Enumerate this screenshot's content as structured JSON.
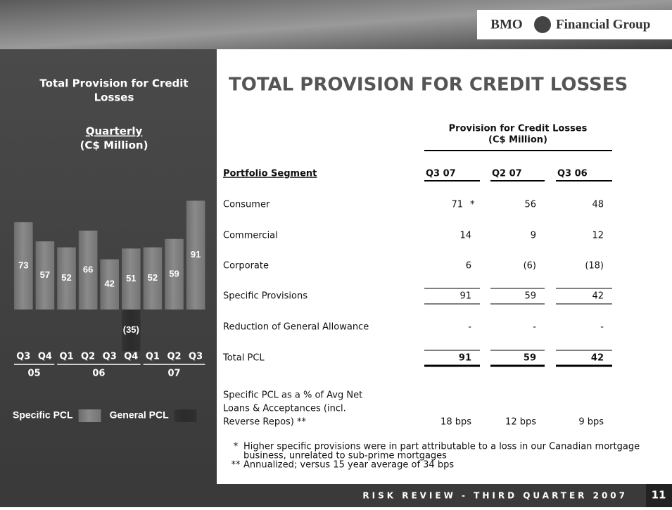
{
  "header": {
    "brand_left": "BMO",
    "brand_right": "Financial Group"
  },
  "sidebar": {
    "title": [
      "Total Provision for Credit",
      "Losses"
    ],
    "period": "Quarterly",
    "unit": "(C$ Million)"
  },
  "chart_data": {
    "type": "bar",
    "categories": [
      "Q3",
      "Q4",
      "Q1",
      "Q2",
      "Q3",
      "Q4",
      "Q1",
      "Q2",
      "Q3"
    ],
    "group_labels": [
      "05",
      "06",
      "07"
    ],
    "series": [
      {
        "name": "Specific PCL",
        "color": "#8a8a8a",
        "values": [
          73,
          57,
          52,
          66,
          42,
          51,
          52,
          59,
          91
        ]
      },
      {
        "name": "General PCL",
        "color": "#2b2b2b",
        "values": [
          null,
          null,
          null,
          null,
          null,
          -35,
          null,
          null,
          null
        ],
        "value_labels": [
          null,
          null,
          null,
          null,
          null,
          "(35)",
          null,
          null,
          null
        ]
      }
    ],
    "legend": "bottom-left"
  },
  "main": {
    "title": "TOTAL PROVISION FOR CREDIT LOSSES"
  },
  "table": {
    "super_header": [
      "Provision for Credit Losses",
      "(C$ Million)"
    ],
    "columns": [
      "Portfolio Segment",
      "Q3 07",
      "Q2 07",
      "Q3 06"
    ],
    "rows": [
      {
        "label": [
          "Consumer"
        ],
        "values": [
          "71",
          "56",
          "48"
        ],
        "note": "*"
      },
      {
        "label": [
          "Commercial"
        ],
        "values": [
          "14",
          "9",
          "12"
        ]
      },
      {
        "label": [
          "Corporate"
        ],
        "values": [
          "6",
          "(6)",
          "(18)"
        ]
      },
      {
        "label": [
          "Specific Provisions"
        ],
        "values": [
          "91",
          "59",
          "42"
        ]
      },
      {
        "label": [
          "Reduction of General Allowance"
        ],
        "values": [
          "-",
          "-",
          "-"
        ]
      },
      {
        "label": [
          "Total PCL"
        ],
        "values": [
          "91",
          "59",
          "42"
        ]
      },
      {
        "label": [
          "Specific PCL as a % of Avg Net",
          "Loans & Acceptances (incl.",
          "Reverse Repos) **"
        ],
        "values": [
          "18 bps",
          "12 bps",
          "9 bps"
        ]
      }
    ]
  },
  "footnotes": [
    {
      "mark": "*",
      "text": [
        "Higher specific provisions were in part attributable to a loss in our Canadian mortgage",
        "business, unrelated to sub-prime mortgages"
      ]
    },
    {
      "mark": "**",
      "text": [
        "Annualized; versus 15 year average of 34 bps"
      ]
    }
  ],
  "footer": {
    "text": "RISK REVIEW - THIRD QUARTER 2007",
    "page": "11"
  }
}
